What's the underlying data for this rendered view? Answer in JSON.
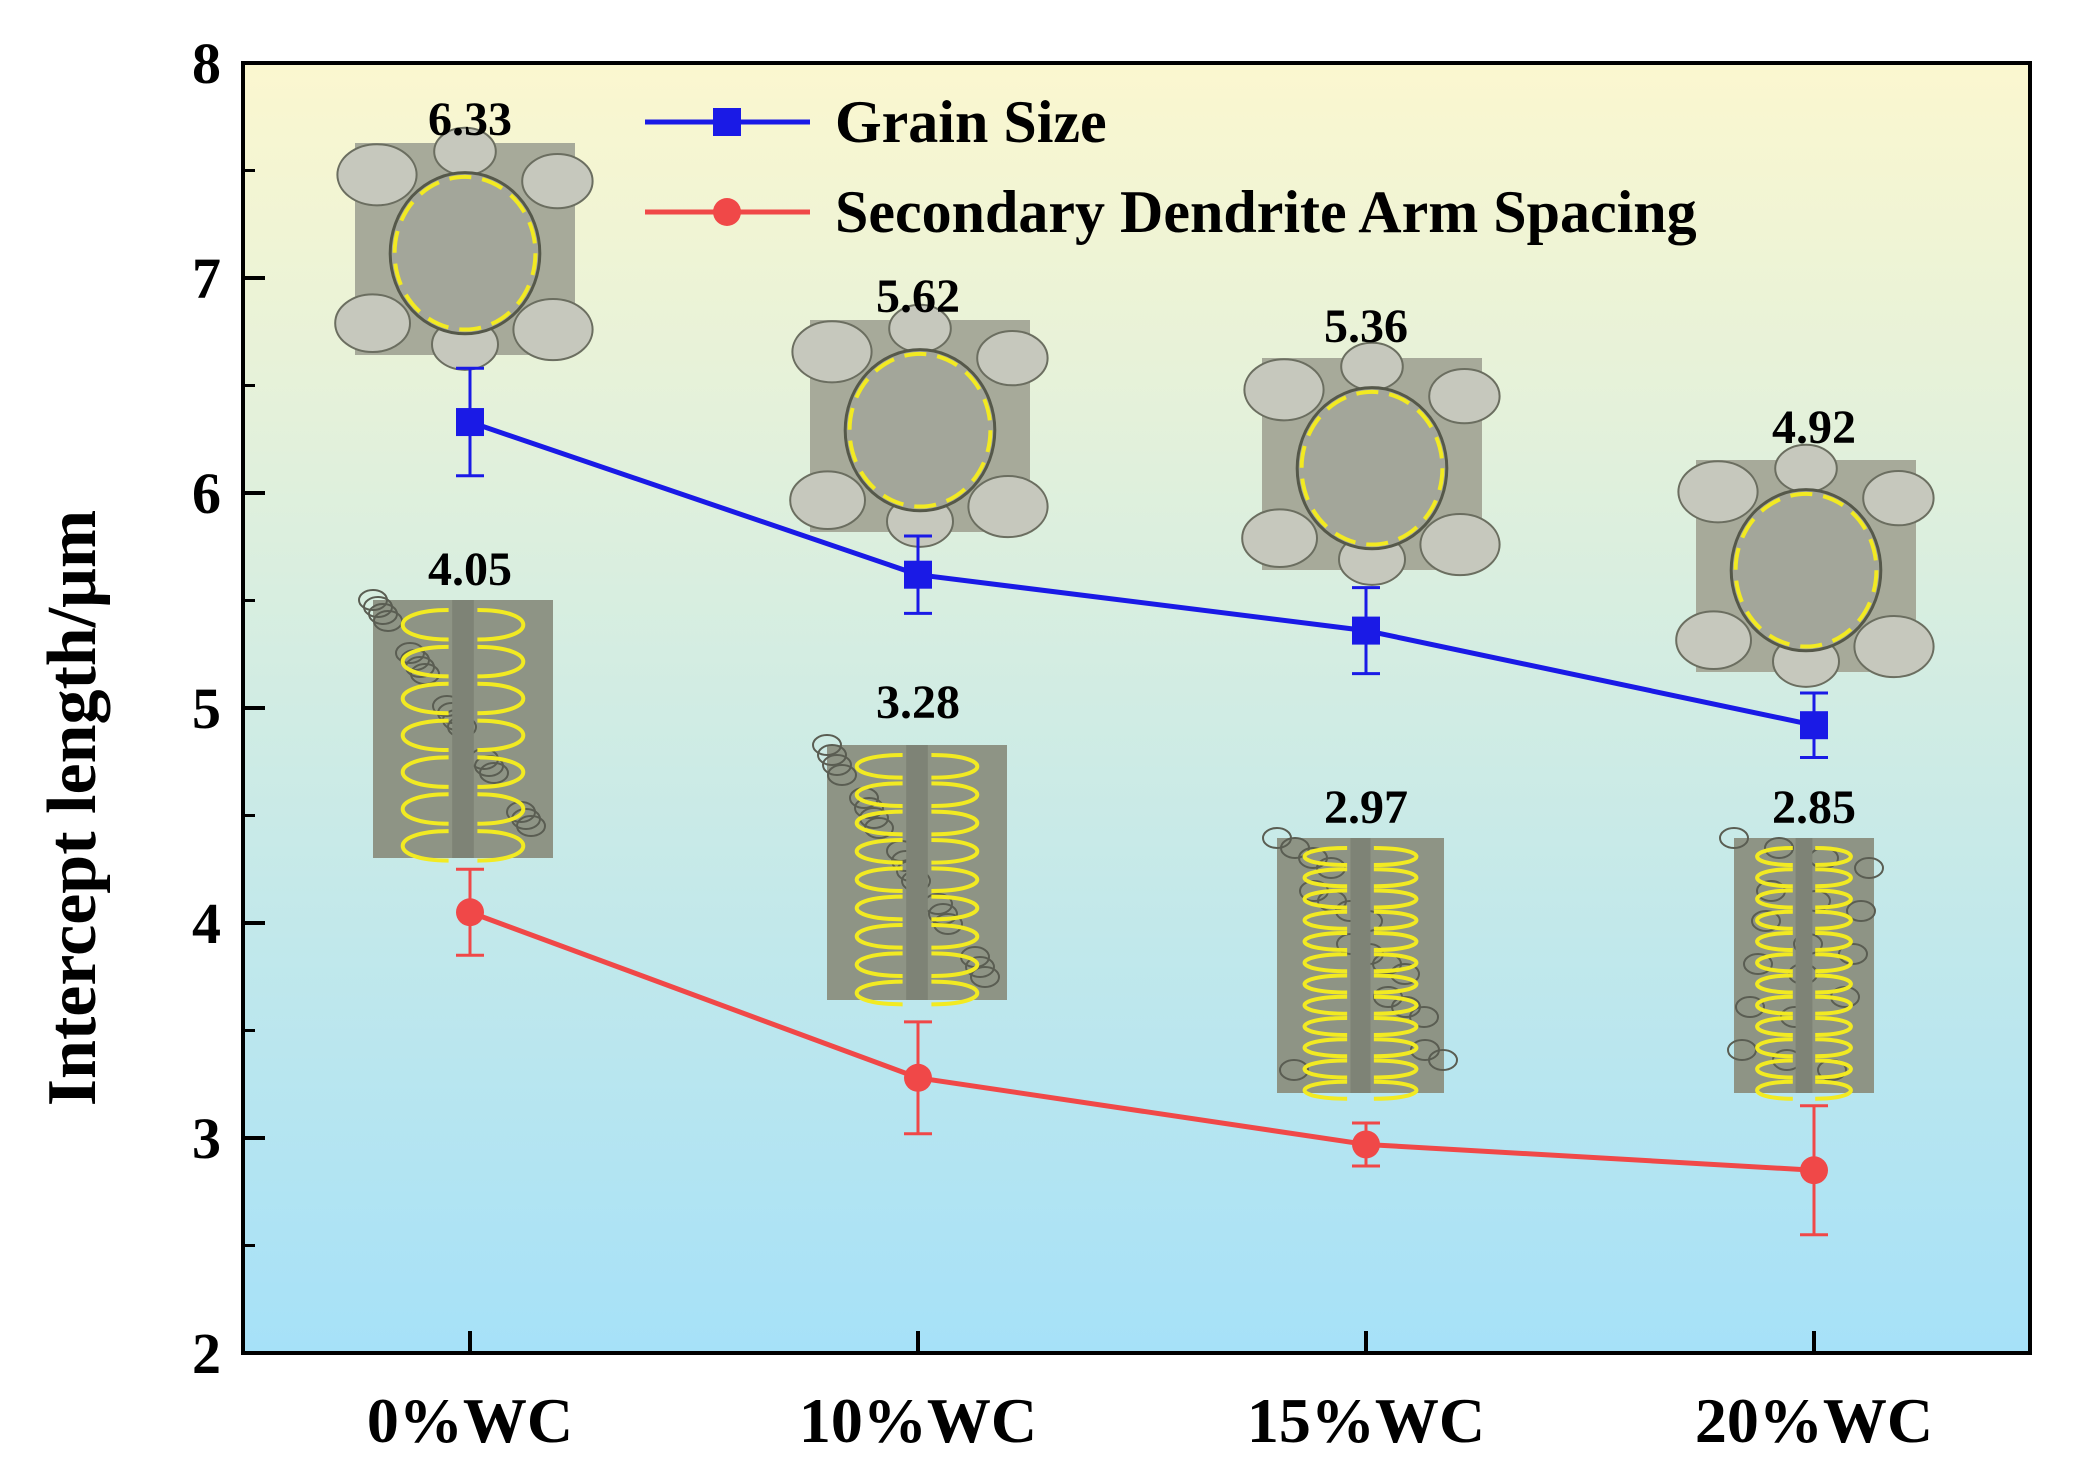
{
  "chart_data": {
    "type": "line",
    "title": "",
    "xlabel": "",
    "ylabel": "Intercept length/μm",
    "categories": [
      "0%WC",
      "10%WC",
      "15%WC",
      "20%WC"
    ],
    "ylim": [
      2,
      8
    ],
    "yticks": [
      "2",
      "3",
      "4",
      "5",
      "6",
      "7",
      "8"
    ],
    "grid": false,
    "legend_position": "top-right",
    "series": [
      {
        "name": "Grain Size",
        "color": "#1a1ae6",
        "marker": "square",
        "values": [
          6.33,
          5.62,
          5.36,
          4.92
        ],
        "error": [
          0.25,
          0.18,
          0.2,
          0.15
        ],
        "labels": [
          "6.33",
          "5.62",
          "5.36",
          "4.92"
        ],
        "inset_icon": "grain-micrograph"
      },
      {
        "name": "Secondary Dendrite Arm Spacing",
        "color": "#f04848",
        "marker": "circle",
        "values": [
          4.05,
          3.28,
          2.97,
          2.85
        ],
        "error": [
          0.2,
          0.26,
          0.1,
          0.3
        ],
        "labels": [
          "4.05",
          "3.28",
          "2.97",
          "2.85"
        ],
        "inset_icon": "dendrite-micrograph"
      }
    ],
    "background_gradient": [
      "#fbf7cf",
      "#a6e1f8"
    ]
  }
}
